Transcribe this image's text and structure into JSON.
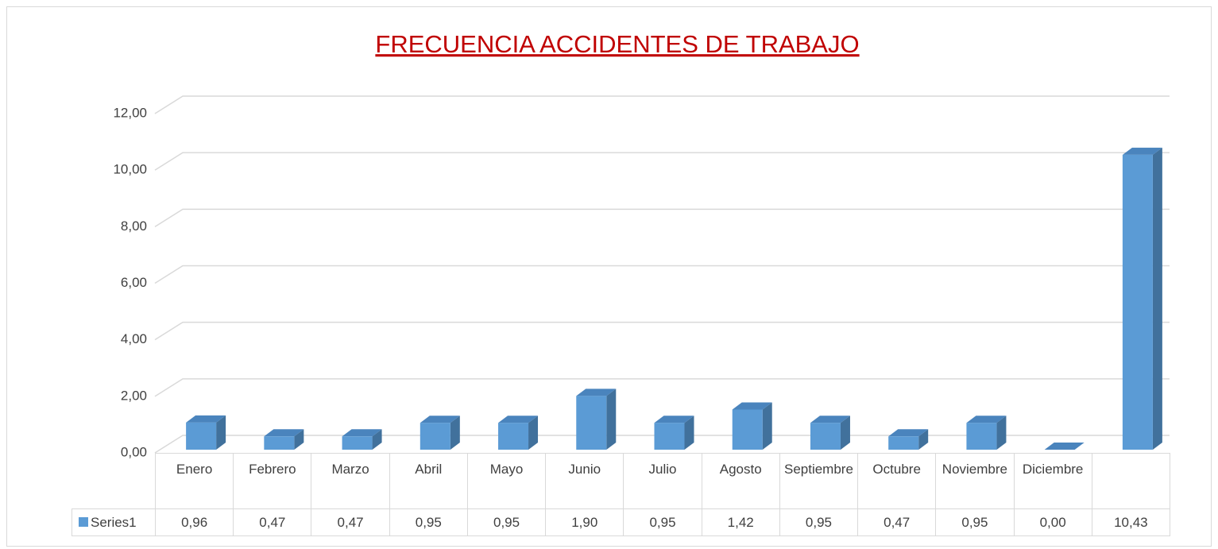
{
  "chart_data": {
    "type": "bar3d",
    "title": "FRECUENCIA ACCIDENTES DE TRABAJO",
    "categories": [
      "Enero",
      "Febrero",
      "Marzo",
      "Abril",
      "Mayo",
      "Junio",
      "Julio",
      "Agosto",
      "Septiembre",
      "Octubre",
      "Noviembre",
      "Diciembre",
      null
    ],
    "series": [
      {
        "name": "Series1",
        "color": "#5b9bd5",
        "values": [
          0.96,
          0.47,
          0.47,
          0.95,
          0.95,
          1.9,
          0.95,
          1.42,
          0.95,
          0.47,
          0.95,
          0.0,
          10.43
        ],
        "value_labels": [
          "0,96",
          "0,47",
          "0,47",
          "0,95",
          "0,95",
          "1,90",
          "0,95",
          "1,42",
          "0,95",
          "0,47",
          "0,95",
          "0,00",
          "10,43"
        ]
      }
    ],
    "ylim": [
      0,
      12
    ],
    "yticks": [
      {
        "value": 0,
        "label": "0,00"
      },
      {
        "value": 2,
        "label": "2,00"
      },
      {
        "value": 4,
        "label": "4,00"
      },
      {
        "value": 6,
        "label": "6,00"
      },
      {
        "value": 8,
        "label": "8,00"
      },
      {
        "value": 10,
        "label": "10,00"
      },
      {
        "value": 12,
        "label": "12,00"
      }
    ],
    "grid": true
  }
}
